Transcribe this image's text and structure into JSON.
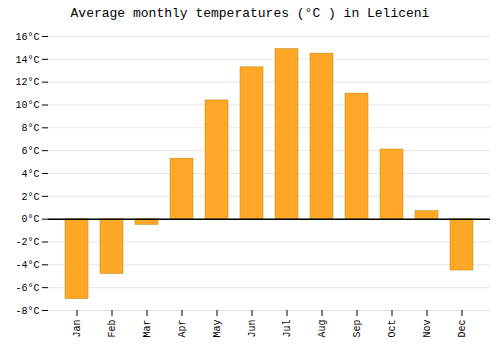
{
  "chart_data": {
    "type": "bar",
    "title": "Average monthly temperatures (°C ) in Leliceni",
    "categories": [
      "Jan",
      "Feb",
      "Mar",
      "Apr",
      "May",
      "Jun",
      "Jul",
      "Aug",
      "Sep",
      "Oct",
      "Nov",
      "Dec"
    ],
    "values": [
      -7.0,
      -4.8,
      -0.5,
      5.3,
      10.4,
      13.3,
      14.9,
      14.5,
      11.0,
      6.1,
      0.7,
      -4.5
    ],
    "color": "#FFA726",
    "ylim": [
      -8,
      16
    ],
    "yticks": [
      {
        "value": -8,
        "label": "-8°C"
      },
      {
        "value": -6,
        "label": "-6°C"
      },
      {
        "value": -4,
        "label": "-4°C"
      },
      {
        "value": -2,
        "label": "-2°C"
      },
      {
        "value": 0,
        "label": "0°C"
      },
      {
        "value": 2,
        "label": "2°C"
      },
      {
        "value": 4,
        "label": "4°C"
      },
      {
        "value": 6,
        "label": "6°C"
      },
      {
        "value": 8,
        "label": "8°C"
      },
      {
        "value": 10,
        "label": "10°C"
      },
      {
        "value": 12,
        "label": "12°C"
      },
      {
        "value": 14,
        "label": "14°C"
      },
      {
        "value": 16,
        "label": "16°C"
      }
    ],
    "grid": true
  }
}
